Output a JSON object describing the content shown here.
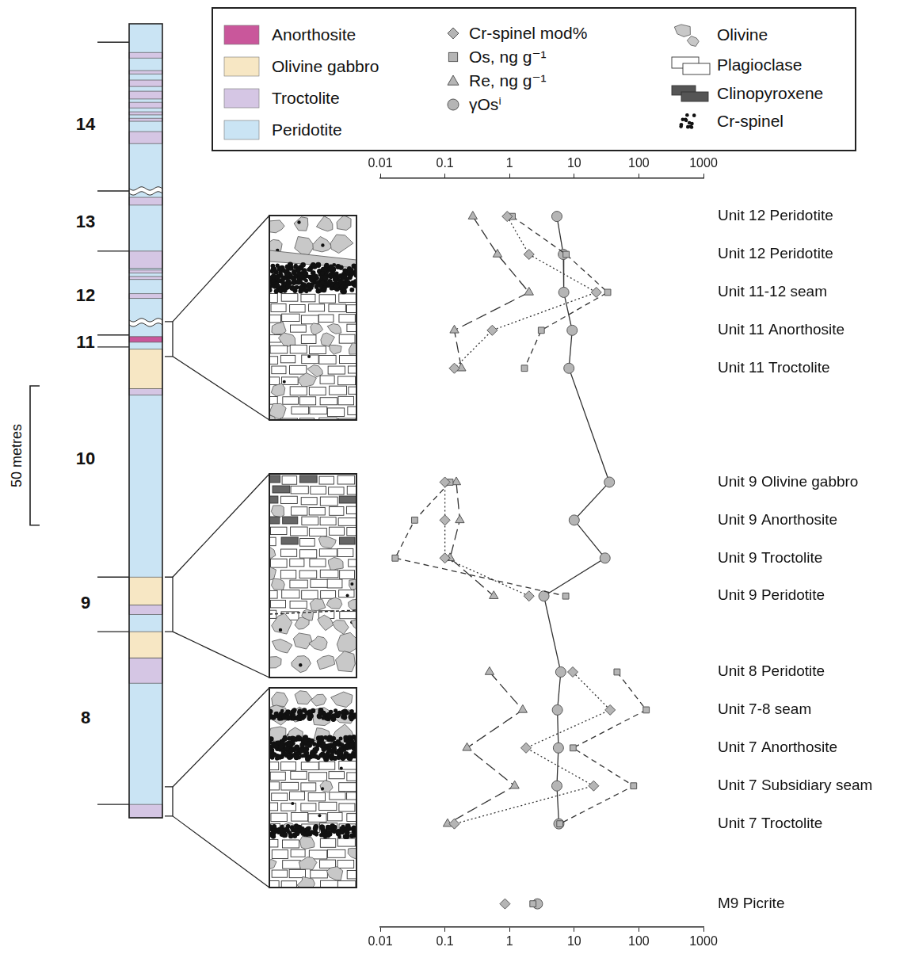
{
  "chart_data": [
    {
      "type": "line",
      "orientation": "horizontal",
      "log": "x",
      "grid": false,
      "legend": "top",
      "xlim": [
        0.01,
        1000
      ],
      "xticks": [
        0.01,
        0.1,
        1,
        10,
        100,
        1000
      ],
      "categories": [
        "Unit 12 Peridotite",
        "Unit 12 Peridotite",
        "Unit 11-12 seam",
        "Unit 11 Anorthosite",
        "Unit 11 Troctolite",
        null,
        null,
        "Unit 9 Olivine gabbro",
        "Unit 9 Anorthosite",
        "Unit 9 Troctolite",
        "Unit 9 Peridotite",
        null,
        "Unit 8 Peridotite",
        "Unit 7-8 seam",
        "Unit 7 Anorthosite",
        "Unit 7 Subsidiary seam",
        "Unit 7 Troctolite"
      ],
      "series": [
        {
          "name": "Cr-spinel mod%",
          "color": "#b5b5b5",
          "marker": "diamond",
          "line_style": "dotted",
          "values": [
            0.92,
            2.0,
            22,
            0.54,
            0.14,
            null,
            null,
            0.1,
            0.1,
            0.1,
            2.0,
            null,
            9.5,
            36,
            1.8,
            20,
            0.14
          ]
        },
        {
          "name": "Os, ng g⁻¹",
          "color": "#b5b5b5",
          "marker": "square",
          "line_style": "dashed",
          "values": [
            1.1,
            7.5,
            33,
            3.1,
            1.7,
            null,
            null,
            0.12,
            0.034,
            0.017,
            7.4,
            null,
            46,
            130,
            9.6,
            83,
            6.0
          ]
        },
        {
          "name": "Re, ng g⁻¹",
          "color": "#b5b5b5",
          "marker": "triangle",
          "line_style": "long_dashed",
          "values": [
            0.27,
            0.65,
            2.0,
            0.14,
            0.18,
            null,
            null,
            0.15,
            0.17,
            0.12,
            0.57,
            null,
            0.49,
            1.6,
            0.22,
            1.2,
            0.11
          ]
        },
        {
          "name": "γOsⁱ",
          "color": "#b5b5b5",
          "marker": "circle",
          "line_style": "solid",
          "values": [
            5.4,
            6.8,
            6.9,
            9.3,
            8.3,
            null,
            null,
            35,
            10,
            30,
            3.4,
            null,
            6.2,
            5.5,
            5.7,
            5.4,
            5.8
          ]
        }
      ]
    },
    {
      "type": "scatter",
      "orientation": "horizontal",
      "log": "x",
      "grid": false,
      "xlim": [
        0.01,
        1000
      ],
      "xticks": [
        0.01,
        0.1,
        1,
        10,
        100,
        1000
      ],
      "categories": [
        "M9 Picrite"
      ],
      "series": [
        {
          "name": "Cr-spinel mod%",
          "color": "#b5b5b5",
          "marker": "diamond",
          "values": [
            0.85
          ]
        },
        {
          "name": "Os, ng g⁻¹",
          "color": "#b5b5b5",
          "marker": "square",
          "values": [
            2.3
          ]
        },
        {
          "name": "γOsⁱ",
          "color": "#b5b5b5",
          "marker": "circle",
          "values": [
            2.7
          ]
        }
      ]
    }
  ],
  "legend_box": {
    "lithologies": [
      {
        "name": "Anorthosite",
        "color": "#c9579b"
      },
      {
        "name": "Olivine gabbro",
        "color": "#f7e7c4"
      },
      {
        "name": "Troctolite",
        "color": "#d5c6e4"
      },
      {
        "name": "Peridotite",
        "color": "#cae4f4"
      }
    ],
    "minerals": [
      "Olivine",
      "Plagioclase",
      "Clinopyroxene",
      "Cr-spinel"
    ]
  },
  "column": {
    "range_m": [
      0,
      285
    ],
    "base_lithology": "Peridotite",
    "layers": [
      {
        "lithology": "Troctolite",
        "base_m": 0,
        "top_m": 4.8
      },
      {
        "lithology": "Troctolite",
        "base_m": 48.3,
        "top_m": 57.4
      },
      {
        "lithology": "Olivine gabbro",
        "base_m": 57.4,
        "top_m": 66.8
      },
      {
        "lithology": "Troctolite",
        "base_m": 73.0,
        "top_m": 76.4
      },
      {
        "lithology": "Olivine gabbro",
        "base_m": 76.4,
        "top_m": 86.4
      },
      {
        "lithology": "Troctolite",
        "base_m": 151.7,
        "top_m": 154.0
      },
      {
        "lithology": "Olivine gabbro",
        "base_m": 154.0,
        "top_m": 168.2
      },
      {
        "lithology": "Anorthosite",
        "base_m": 170.7,
        "top_m": 172.7
      },
      {
        "lithology": "Troctolite",
        "base_m": 186.4,
        "top_m": 188.1
      },
      {
        "lithology": "Troctolite",
        "base_m": 193.2,
        "top_m": 194.3
      },
      {
        "lithology": "Troctolite",
        "base_m": 195.5,
        "top_m": 196.6
      },
      {
        "lithology": "Troctolite",
        "base_m": 197.2,
        "top_m": 203.4
      },
      {
        "lithology": "Troctolite",
        "base_m": 219.9,
        "top_m": 222.7
      },
      {
        "lithology": "Troctolite",
        "base_m": 242.0,
        "top_m": 246.3
      },
      {
        "lithology": "Troctolite",
        "base_m": 250.0,
        "top_m": 251.1
      },
      {
        "lithology": "Troctolite",
        "base_m": 252.3,
        "top_m": 253.4
      },
      {
        "lithology": "Troctolite",
        "base_m": 254.8,
        "top_m": 256.8
      },
      {
        "lithology": "Troctolite",
        "base_m": 258.0,
        "top_m": 260.8
      },
      {
        "lithology": "Troctolite",
        "base_m": 262.5,
        "top_m": 264.8
      },
      {
        "lithology": "Troctolite",
        "base_m": 267.0,
        "top_m": 268.2
      },
      {
        "lithology": "Troctolite",
        "base_m": 272.7,
        "top_m": 274.7
      }
    ],
    "unit_boundaries_m": [
      278.4,
      225.0,
      203.4,
      173.3,
      169.0,
      86.4,
      66.8,
      4.8
    ],
    "wavy_contacts_m": [
      225.0,
      177.8
    ],
    "units": [
      {
        "label": "14",
        "at_m": 249.1
      },
      {
        "label": "13",
        "at_m": 214.2
      },
      {
        "label": "12",
        "at_m": 187.8
      },
      {
        "label": "11",
        "at_m": 171.0
      },
      {
        "label": "10",
        "at_m": 129.0
      },
      {
        "label": "9",
        "at_m": 77.3
      },
      {
        "label": "8",
        "at_m": 36.1
      }
    ],
    "scale_bar": {
      "label": "50 metres",
      "length_m": 50
    },
    "insets_m": [
      [
        165.6,
        178.1
      ],
      [
        66.8,
        86.4
      ],
      [
        0.6,
        11.1
      ]
    ]
  }
}
